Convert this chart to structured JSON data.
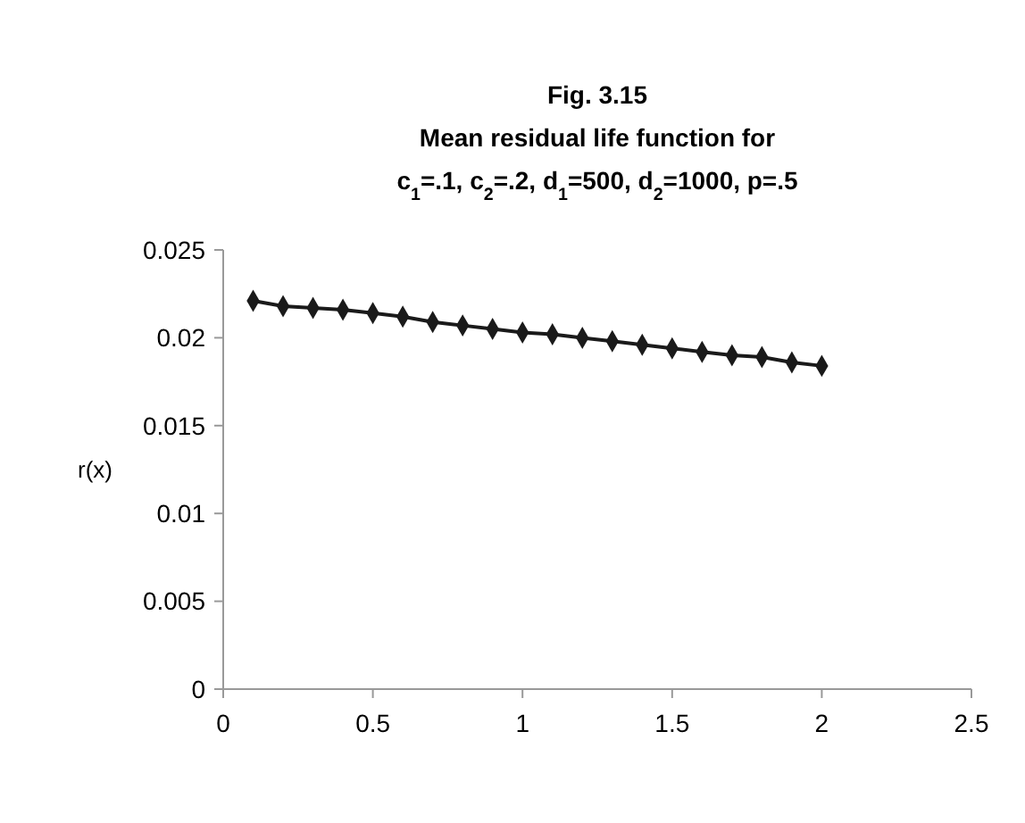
{
  "chart_data": {
    "type": "line",
    "title": "Fig. 3.15",
    "subtitle": "Mean residual life function for c$_{1}$=.1, c$_{2}$=.2, d$_{1}$=500, d$_{2}$=1000, p=.5",
    "ylabel": "r(x)",
    "x": [
      0.1,
      0.2,
      0.3,
      0.4,
      0.5,
      0.6,
      0.7,
      0.8,
      0.9,
      1.0,
      1.1,
      1.2,
      1.3,
      1.4,
      1.5,
      1.6,
      1.7,
      1.8,
      1.9,
      2.0
    ],
    "series": [
      {
        "color": "#1a1a1a",
        "values": [
          0.0221,
          0.0218,
          0.0217,
          0.0216,
          0.0214,
          0.0212,
          0.0209,
          0.0207,
          0.0205,
          0.0203,
          0.0202,
          0.02,
          0.0198,
          0.0196,
          0.0194,
          0.0192,
          0.019,
          0.0189,
          0.0186,
          0.0184
        ]
      }
    ],
    "xlim": [
      0,
      2.5
    ],
    "xticks": [
      0,
      0.5,
      1,
      1.5,
      2,
      2.5
    ],
    "ylim": [
      0,
      0.025
    ],
    "yticks": [
      0,
      0.005,
      0.01,
      0.015,
      0.02,
      0.025
    ],
    "marker": "diamond",
    "line_style": "solid"
  }
}
